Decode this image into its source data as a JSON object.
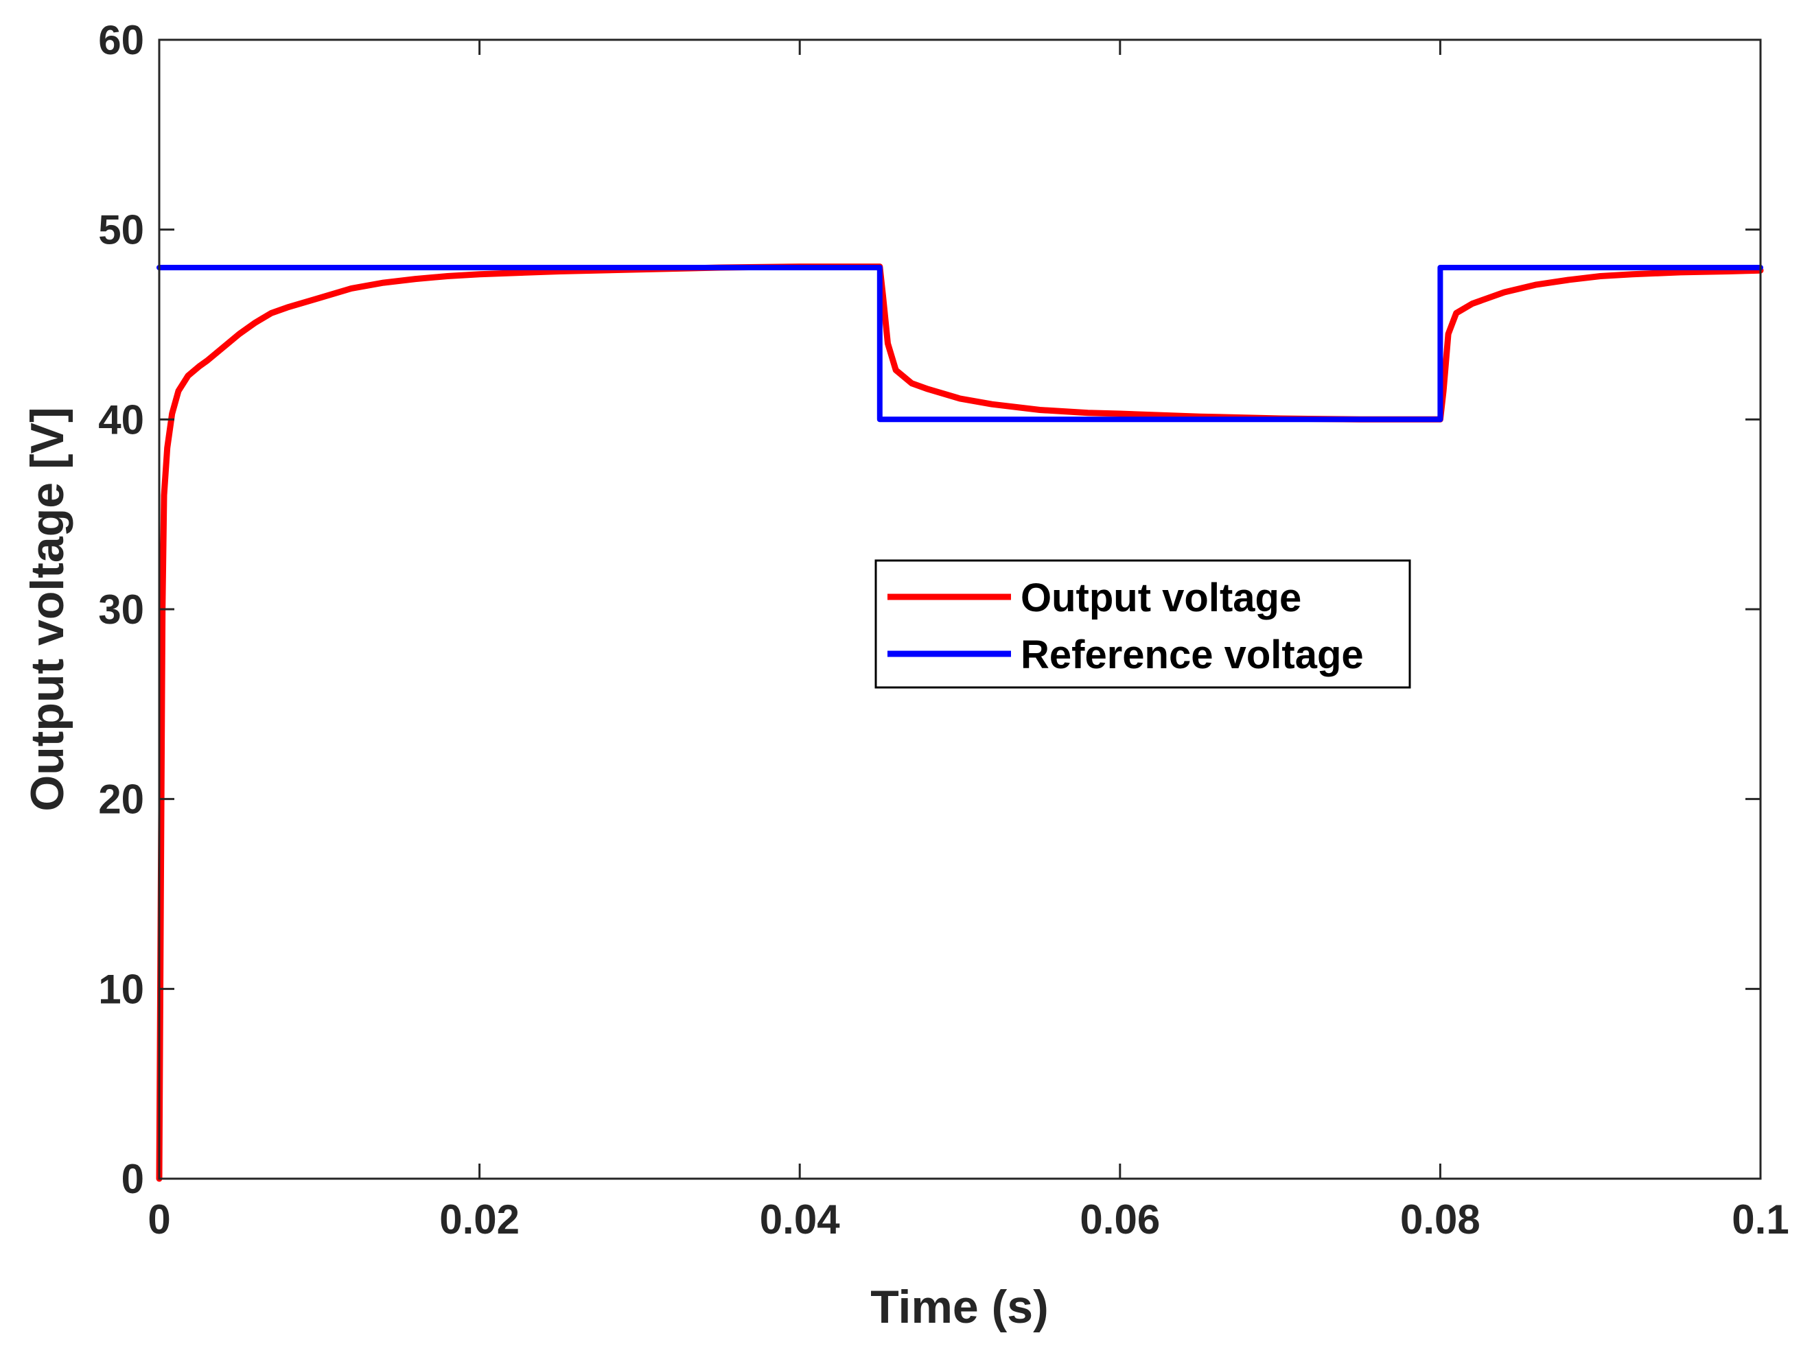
{
  "chart_data": {
    "type": "line",
    "title": "",
    "xlabel": "Time (s)",
    "ylabel": "Output voltage [V]",
    "xlim": [
      0,
      0.1
    ],
    "ylim": [
      0,
      60
    ],
    "xticks": [
      0,
      0.02,
      0.04,
      0.06,
      0.08,
      0.1
    ],
    "xtick_labels": [
      "0",
      "0.02",
      "0.04",
      "0.06",
      "0.08",
      "0.1"
    ],
    "yticks": [
      0,
      10,
      20,
      30,
      40,
      50,
      60
    ],
    "ytick_labels": [
      "0",
      "10",
      "20",
      "30",
      "40",
      "50",
      "60"
    ],
    "grid": false,
    "legend_position": "center-right",
    "series": [
      {
        "name": "Output voltage",
        "color": "#ff0000",
        "x": [
          0,
          0.0001,
          0.0002,
          0.0003,
          0.0005,
          0.0008,
          0.0012,
          0.0018,
          0.0025,
          0.003,
          0.004,
          0.005,
          0.006,
          0.007,
          0.008,
          0.01,
          0.012,
          0.014,
          0.016,
          0.018,
          0.02,
          0.025,
          0.03,
          0.035,
          0.04,
          0.045,
          0.0452,
          0.0455,
          0.046,
          0.047,
          0.048,
          0.05,
          0.052,
          0.055,
          0.058,
          0.06,
          0.065,
          0.07,
          0.075,
          0.08,
          0.0802,
          0.0805,
          0.081,
          0.082,
          0.084,
          0.086,
          0.088,
          0.09,
          0.092,
          0.095,
          0.098,
          0.1
        ],
        "values": [
          0,
          15,
          30,
          36,
          38.5,
          40.3,
          41.5,
          42.3,
          42.8,
          43.1,
          43.8,
          44.5,
          45.1,
          45.6,
          45.9,
          46.4,
          46.9,
          47.2,
          47.4,
          47.55,
          47.65,
          47.8,
          47.9,
          48.0,
          48.05,
          48.05,
          46.5,
          44.0,
          42.6,
          41.9,
          41.6,
          41.1,
          40.8,
          40.5,
          40.35,
          40.3,
          40.15,
          40.05,
          40.0,
          40.0,
          41.5,
          44.5,
          45.6,
          46.1,
          46.7,
          47.1,
          47.35,
          47.55,
          47.65,
          47.75,
          47.8,
          47.85
        ]
      },
      {
        "name": "Reference voltage",
        "color": "#0000ff",
        "x": [
          0,
          0.045,
          0.045,
          0.08,
          0.08,
          0.1
        ],
        "values": [
          48,
          48,
          40,
          40,
          48,
          48
        ]
      }
    ]
  }
}
